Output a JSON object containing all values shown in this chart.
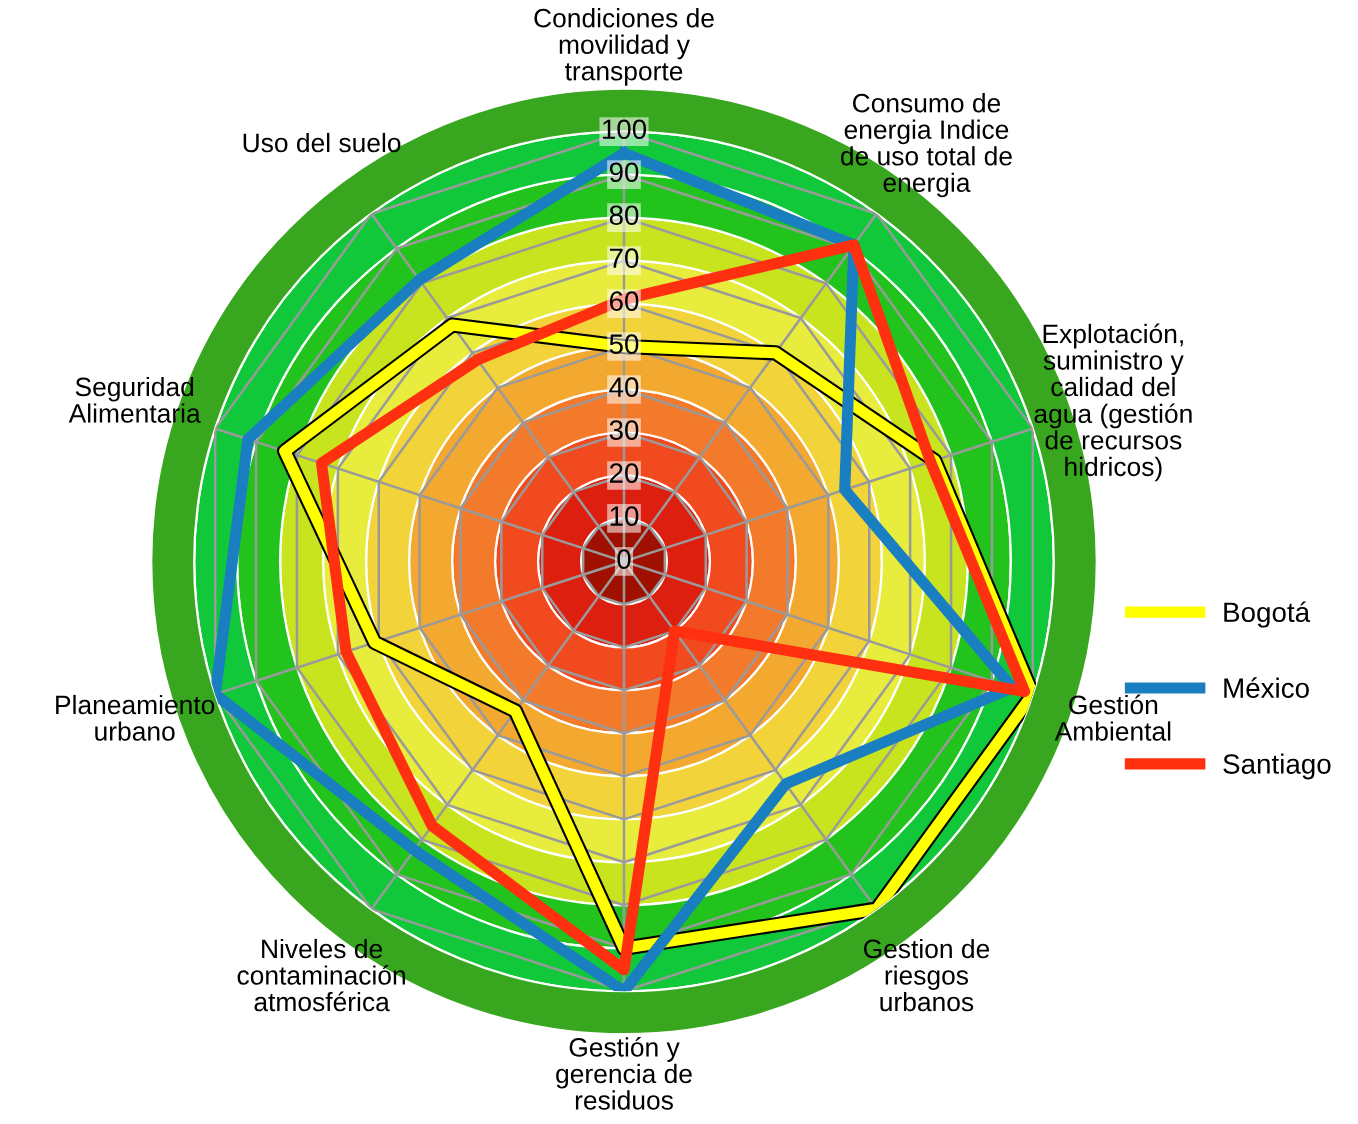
{
  "chart_data": {
    "type": "radar",
    "categories": [
      "Condiciones de\nmovilidad y\ntransporte",
      "Consumo de\nenergia Indice\nde uso total de\nenergia",
      "Explotación,\nsuministro y\ncalidad del\nagua (gestión\nde recursos\nhidricos)",
      "Gestión\nAmbiental",
      "Gestion de\nriesgos\nurbanos",
      "Gestión y\ngerencia de\nresiduos",
      "Niveles de\ncontaminación\natmosférica",
      "Planeamiento\nurbano",
      "Seguridad\nAlimentaria",
      "Uso del suelo"
    ],
    "series": [
      {
        "name": "Bogotá",
        "color": "#ffff00",
        "values": [
          50,
          60,
          76,
          100,
          100,
          90,
          43,
          61,
          83,
          68
        ]
      },
      {
        "name": "México",
        "color": "#1a7fc0",
        "values": [
          95,
          91,
          54,
          95,
          64,
          100,
          83,
          100,
          92,
          81
        ]
      },
      {
        "name": "Santiago",
        "color": "#ff3010",
        "values": [
          61,
          91,
          75,
          98,
          20,
          95,
          76,
          68,
          74,
          58
        ]
      }
    ],
    "ylim": [
      0,
      100
    ],
    "yticks": [
      0,
      10,
      20,
      30,
      40,
      50,
      60,
      70,
      80,
      90,
      100
    ],
    "grid": true,
    "legend": "right"
  }
}
